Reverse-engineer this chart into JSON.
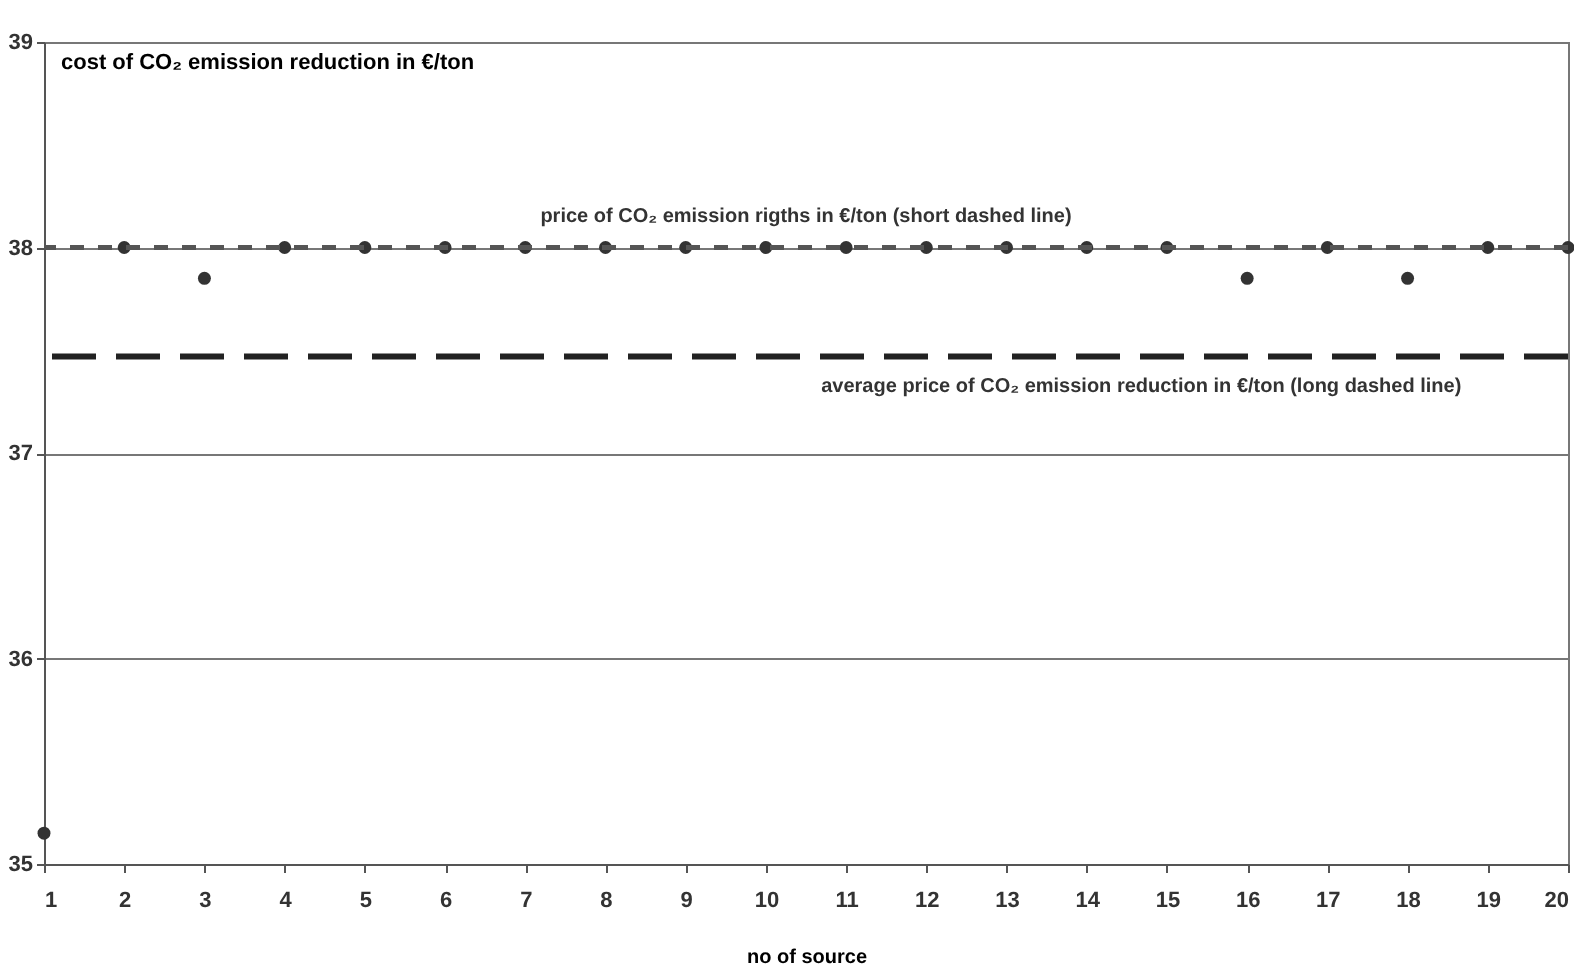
{
  "chart_data": {
    "type": "scatter",
    "ylabel": "cost of CO₂ emission reduction in  €/ton",
    "xlabel": "no of source",
    "x": [
      1,
      2,
      3,
      4,
      5,
      6,
      7,
      8,
      9,
      10,
      11,
      12,
      13,
      14,
      15,
      16,
      17,
      18,
      19,
      20
    ],
    "series": [
      {
        "color": "#333333",
        "values": [
          35.15,
          38,
          37.85,
          38,
          38,
          38,
          38,
          38,
          38,
          38,
          38,
          38,
          38,
          38,
          38,
          37.85,
          38,
          37.85,
          38,
          38
        ]
      }
    ],
    "marker": "circle",
    "xlim": [
      1,
      20
    ],
    "xticks": [
      1,
      2,
      3,
      4,
      5,
      6,
      7,
      8,
      9,
      10,
      11,
      12,
      13,
      14,
      15,
      16,
      17,
      18,
      19,
      20
    ],
    "ylim": [
      35,
      39
    ],
    "yticks": [
      35,
      36,
      37,
      38,
      39
    ],
    "grid": "y",
    "ref_lines": [
      {
        "axis": "y",
        "value": 38,
        "label": "price of CO₂ emission rigths in €/ton  (short dashed line)",
        "line_style": "dotted",
        "color": "#555555"
      },
      {
        "axis": "y",
        "value": 37.47,
        "label": "average price of CO₂ emission reduction in  €/ton (long dashed line)",
        "line_style": "dashed",
        "color": "#222222"
      }
    ]
  }
}
